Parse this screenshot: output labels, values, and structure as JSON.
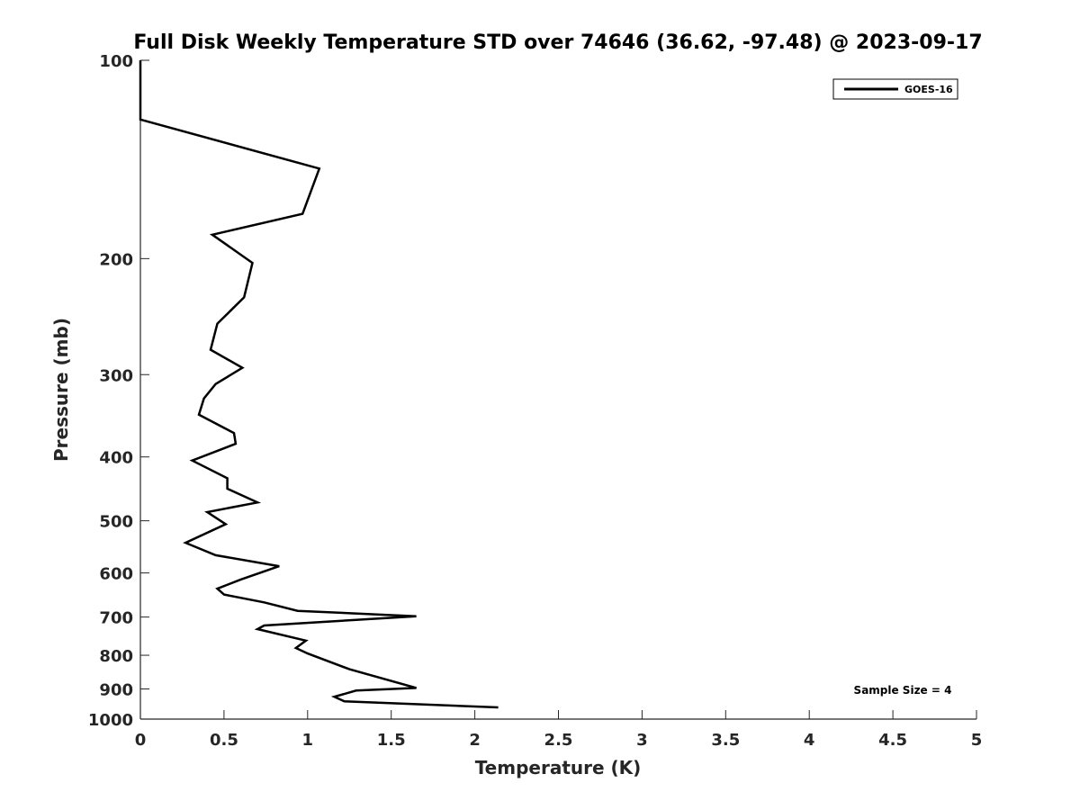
{
  "chart_data": {
    "type": "line",
    "title": "Full Disk Weekly Temperature STD over 74646 (36.62, -97.48) @ 2023-09-17",
    "xlabel": "Temperature (K)",
    "ylabel": "Pressure (mb)",
    "xlim": [
      0,
      5
    ],
    "ylim": [
      100,
      1000
    ],
    "yscale": "log",
    "y_reversed": true,
    "grid": false,
    "legend_position": "top-right",
    "x_ticks": [
      "0",
      "0.5",
      "1",
      "1.5",
      "2",
      "2.5",
      "3",
      "3.5",
      "4",
      "4.5",
      "5"
    ],
    "y_ticks": [
      "100",
      "200",
      "300",
      "400",
      "500",
      "600",
      "700",
      "800",
      "900",
      "1000"
    ],
    "annotation": "Sample Size = 4",
    "series": [
      {
        "name": "GOES-16",
        "color": "#000000",
        "points": [
          [
            0.0,
            100
          ],
          [
            0.0,
            123
          ],
          [
            1.07,
            146
          ],
          [
            0.97,
            171
          ],
          [
            0.43,
            184
          ],
          [
            0.67,
            203
          ],
          [
            0.62,
            229
          ],
          [
            0.46,
            251
          ],
          [
            0.42,
            275
          ],
          [
            0.61,
            293
          ],
          [
            0.45,
            310
          ],
          [
            0.38,
            326
          ],
          [
            0.35,
            345
          ],
          [
            0.56,
            368
          ],
          [
            0.57,
            382
          ],
          [
            0.31,
            405
          ],
          [
            0.52,
            431
          ],
          [
            0.52,
            447
          ],
          [
            0.7,
            469
          ],
          [
            0.4,
            485
          ],
          [
            0.51,
            506
          ],
          [
            0.27,
            540
          ],
          [
            0.45,
            564
          ],
          [
            0.83,
            586
          ],
          [
            0.6,
            614
          ],
          [
            0.46,
            634
          ],
          [
            0.5,
            647
          ],
          [
            0.74,
            665
          ],
          [
            0.94,
            685
          ],
          [
            1.65,
            698
          ],
          [
            0.74,
            721
          ],
          [
            0.7,
            730
          ],
          [
            0.99,
            760
          ],
          [
            0.93,
            780
          ],
          [
            1.0,
            795
          ],
          [
            1.25,
            840
          ],
          [
            1.65,
            897
          ],
          [
            1.29,
            905
          ],
          [
            1.16,
            925
          ],
          [
            1.22,
            940
          ],
          [
            2.14,
            960
          ]
        ]
      }
    ]
  }
}
